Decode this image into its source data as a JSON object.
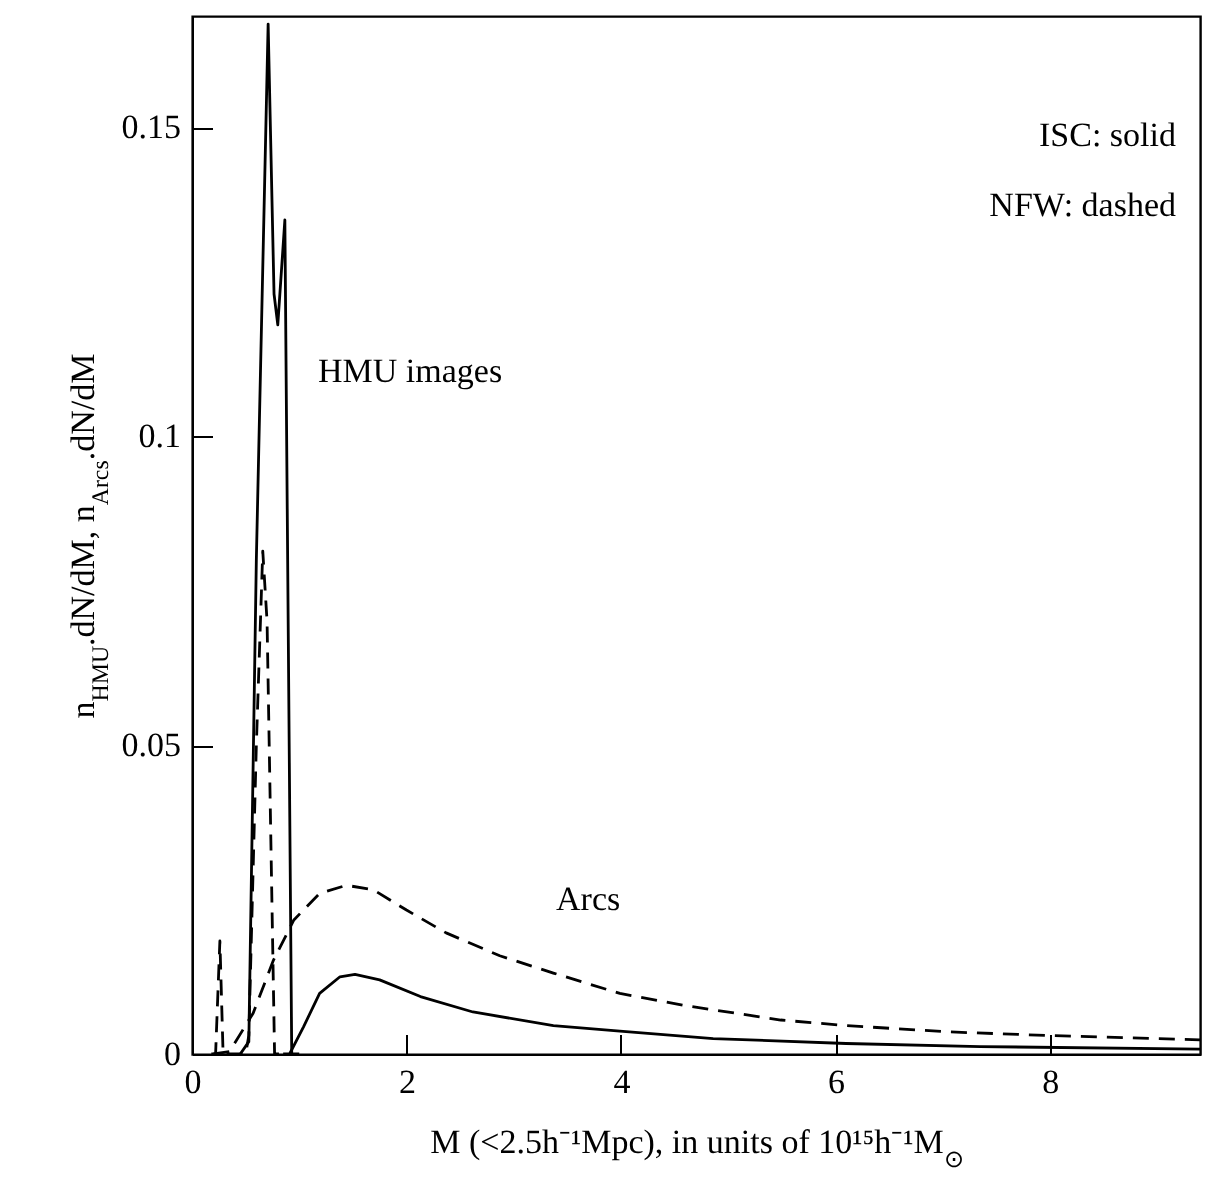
{
  "chart_data": {
    "type": "line",
    "xlabel": "M (<2.5h⁻¹Mpc), in units of 10¹⁵h⁻¹M$_{⊙}$",
    "ylabel": "n$_{HMU}$.dN/dM, n$_{Arcs}$.dN/dM",
    "xlim": [
      0,
      9.4
    ],
    "ylim": [
      0,
      0.168
    ],
    "xticks": [
      0,
      2,
      4,
      6,
      8
    ],
    "yticks": [
      0,
      0.05,
      0.1,
      0.15
    ],
    "grid": false,
    "marker": "none",
    "series": [
      {
        "color": "#000000",
        "line_style": "solid",
        "x": [
          0.45,
          0.53,
          0.6,
          0.71,
          0.765,
          0.8,
          0.866,
          0.93,
          1.0
        ],
        "values": [
          0,
          0.002,
          0.08,
          0.1667,
          0.123,
          0.118,
          0.135,
          0,
          0
        ]
      },
      {
        "color": "#000000",
        "line_style": "dashed",
        "x": [
          0.18,
          0.22,
          0.26,
          0.29,
          0.5,
          0.53,
          0.6,
          0.66,
          0.7,
          0.77,
          0.85
        ],
        "values": [
          0,
          0,
          0.0183,
          0,
          0,
          0.003,
          0.05,
          0.0814,
          0.07,
          0,
          0
        ]
      },
      {
        "color": "#000000",
        "line_style": "dashed",
        "x": [
          0.2,
          0.35,
          0.57,
          0.76,
          0.95,
          1.19,
          1.44,
          1.69,
          2.0,
          2.37,
          2.87,
          3.37,
          3.99,
          4.61,
          5.49,
          6.1,
          7.03,
          7.97,
          9.4
        ],
        "values": [
          0,
          0.0004,
          0.0066,
          0.0152,
          0.0217,
          0.026,
          0.0273,
          0.0266,
          0.0233,
          0.0196,
          0.0159,
          0.0131,
          0.0098,
          0.0078,
          0.0055,
          0.0046,
          0.0036,
          0.003,
          0.0023
        ]
      },
      {
        "color": "#000000",
        "line_style": "solid",
        "x": [
          0.85,
          0.91,
          1.04,
          1.19,
          1.38,
          1.52,
          1.75,
          2.13,
          2.62,
          3.37,
          3.99,
          4.86,
          6.1,
          7.35,
          9.4
        ],
        "values": [
          0,
          0,
          0.0044,
          0.0098,
          0.0125,
          0.0129,
          0.012,
          0.0093,
          0.0068,
          0.0046,
          0.0037,
          0.0025,
          0.0017,
          0.0012,
          0.0008
        ]
      }
    ],
    "annotations": [
      "ISC: solid",
      "NFW: dashed",
      "HMU images",
      "Arcs"
    ]
  }
}
